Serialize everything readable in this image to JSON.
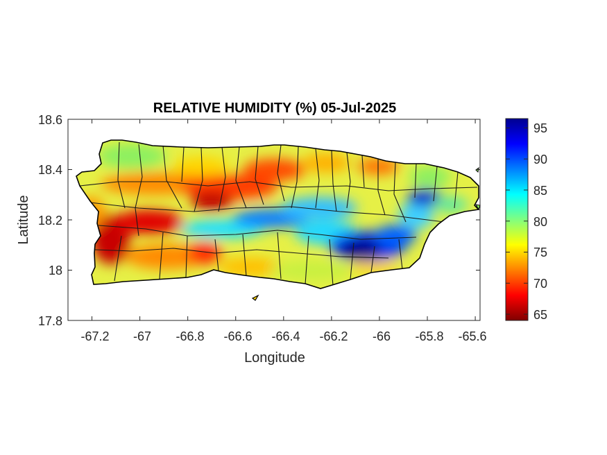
{
  "title": "RELATIVE HUMIDITY (%) 05-Jul-2025",
  "xlabel": "Longitude",
  "ylabel": "Latitude",
  "xticks": [
    "-67.2",
    "-67",
    "-66.8",
    "-66.6",
    "-66.4",
    "-66.2",
    "-66",
    "-65.8",
    "-65.6"
  ],
  "yticks": [
    "18.6",
    "18.4",
    "18.2",
    "18"
  ],
  "y_bottom_tick": "17.8",
  "colorbar_ticks": [
    "95",
    "90",
    "85",
    "80",
    "75",
    "70",
    "65"
  ],
  "colormap": [
    "#800000",
    "#ff0000",
    "#ff8000",
    "#ffff00",
    "#80ff80",
    "#00ffff",
    "#0080ff",
    "#0000ff",
    "#000090"
  ],
  "chart_data": {
    "type": "heatmap",
    "title": "RELATIVE HUMIDITY (%) 05-Jul-2025",
    "xlabel": "Longitude",
    "ylabel": "Latitude",
    "xlim": [
      -67.3,
      -65.58
    ],
    "ylim": [
      17.8,
      18.6
    ],
    "clim": [
      64,
      96.5
    ],
    "colorbar_ticks": [
      65,
      70,
      75,
      80,
      85,
      90,
      95
    ],
    "grid": false,
    "region": "Puerto Rico",
    "summary_bands": [
      {
        "area": "west coast / southwest",
        "value_range": [
          64,
          72
        ]
      },
      {
        "area": "north-central interior",
        "value_range": [
          66,
          72
        ]
      },
      {
        "area": "central mountain ridge",
        "value_range": [
          85,
          95
        ]
      },
      {
        "area": "southeast interior",
        "value_range": [
          90,
          96
        ]
      },
      {
        "area": "east near -65.8",
        "value_range": [
          88,
          95
        ]
      },
      {
        "area": "south coast",
        "value_range": [
          72,
          80
        ]
      },
      {
        "area": "northwest / north coast",
        "value_range": [
          74,
          80
        ]
      }
    ]
  }
}
